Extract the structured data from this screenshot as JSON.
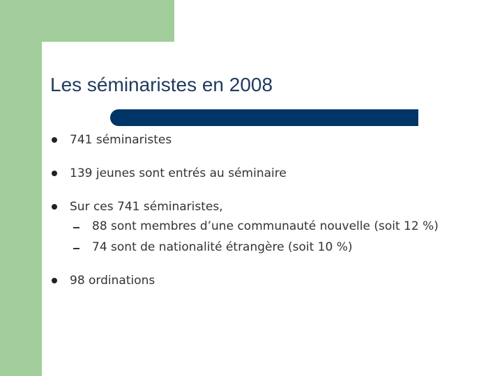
{
  "title": "Les séminaristes en 2008",
  "bullets": [
    {
      "text": "741 séminaristes"
    },
    {
      "text": "139 jeunes sont entrés au séminaire"
    },
    {
      "text": "Sur ces 741 séminaristes,",
      "sub": [
        "88 sont membres d’une communauté nouvelle (soit 12 %)",
        "74 sont de nationalité étrangère (soit 10 %)"
      ]
    },
    {
      "text": "98 ordinations"
    }
  ]
}
